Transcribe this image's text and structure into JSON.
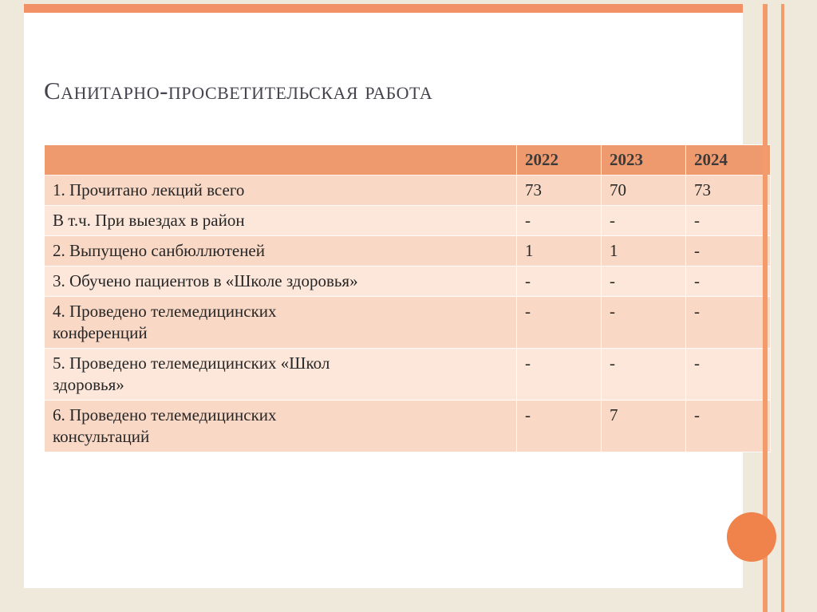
{
  "slide": {
    "title": "Санитарно-просветительская работа"
  },
  "table": {
    "years": [
      "2022",
      "2023",
      "2024"
    ],
    "rows": [
      {
        "label": "1. Прочитано лекций всего",
        "values": [
          "73",
          "70",
          "73"
        ]
      },
      {
        "label": "В т.ч. При выездах в район",
        "values": [
          "-",
          "-",
          "-"
        ]
      },
      {
        "label": "2. Выпущено санбюллютеней",
        "values": [
          "1",
          "1",
          "-"
        ]
      },
      {
        "label": "3. Обучено пациентов в «Школе здоровья»",
        "values": [
          "-",
          "-",
          "-"
        ]
      },
      {
        "label": "4. Проведено телемедицинских\nконференций",
        "values": [
          "-",
          "-",
          "-"
        ]
      },
      {
        "label": "5. Проведено телемедицинских  «Школ\nздоровья»",
        "values": [
          "-",
          "-",
          "-"
        ]
      },
      {
        "label": "6. Проведено телемедицинских\nконсультаций",
        "values": [
          "-",
          "7",
          "-"
        ]
      }
    ]
  },
  "colors": {
    "frame_bg": "#EFE9DC",
    "accent_bar": "#F29066",
    "accent_stripe": "#F49B6B",
    "accent_circle": "#F0824C",
    "table_header_bg": "#EE9A6E",
    "row_dark": "#F9D8C5",
    "row_light": "#FCE7DA",
    "title_color": "#45444E",
    "text_color": "#262626"
  }
}
